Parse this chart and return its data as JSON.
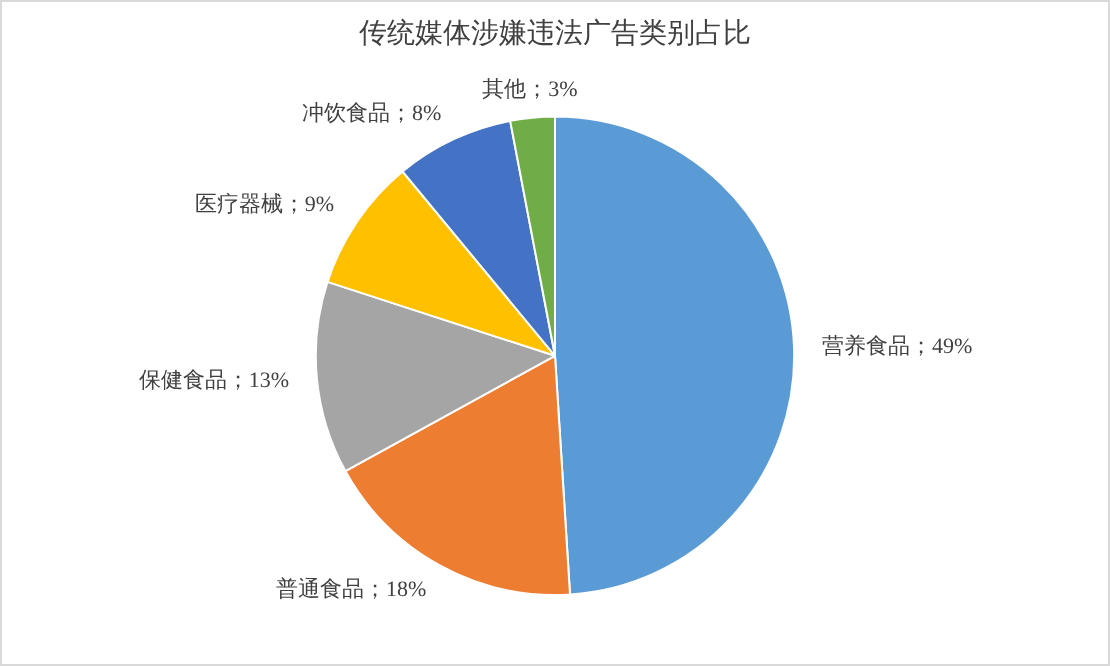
{
  "chart_data": {
    "type": "pie",
    "title": "传统媒体涉嫌违法广告类别占比",
    "categories": [
      "营养食品",
      "普通食品",
      "保健食品",
      "医疗器械",
      "冲饮食品",
      "其他"
    ],
    "values": [
      49,
      18,
      13,
      9,
      8,
      3
    ],
    "colors": [
      "#5b9bd5",
      "#ed7d31",
      "#a5a5a5",
      "#ffc000",
      "#4472c4",
      "#70ad47"
    ],
    "value_labels": [
      "；49%",
      "；18%",
      "；13%",
      "；9%",
      "；8%",
      "；3%"
    ],
    "legend": false
  }
}
